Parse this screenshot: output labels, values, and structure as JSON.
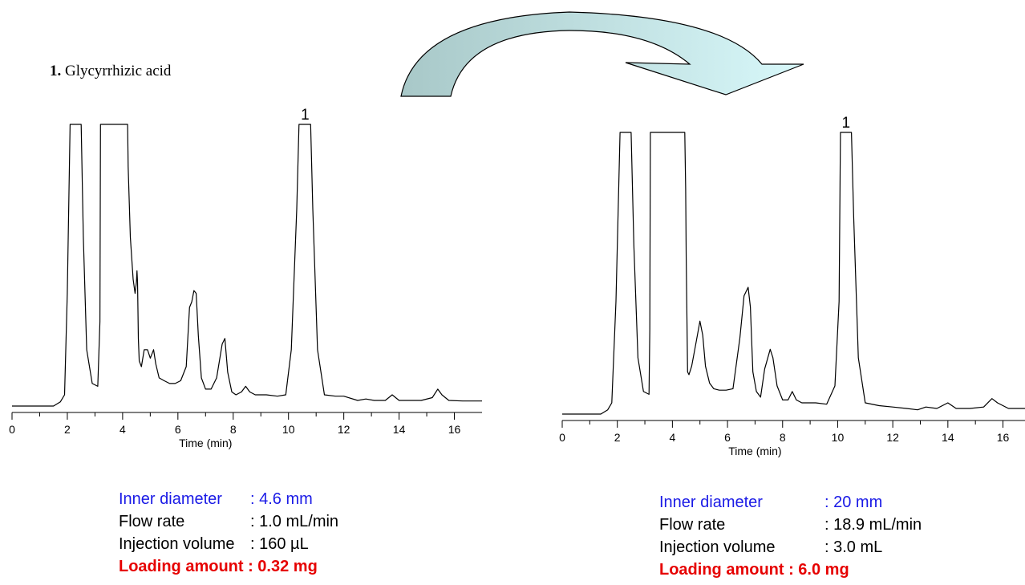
{
  "legend": {
    "num": "1.",
    "name": "Glycyrrhizic acid"
  },
  "colors": {
    "arrow_dark": "#a8c8c8",
    "arrow_light": "#d4f6f8",
    "blue": "#1a1ae6",
    "red": "#e60000"
  },
  "chart_data": [
    {
      "type": "line",
      "xlabel": "Time (min)",
      "ylabel": "",
      "xlim": [
        0,
        17
      ],
      "ylim": [
        0,
        100
      ],
      "xticks": [
        0,
        2,
        4,
        6,
        8,
        10,
        12,
        14,
        16
      ],
      "peak_labels": [
        {
          "x": 10.6,
          "text": "1"
        }
      ],
      "series": [
        {
          "x": [
            0,
            1.5,
            1.75,
            1.9,
            2.0,
            2.1,
            2.5,
            2.58,
            2.7,
            2.9,
            3.1,
            3.18,
            3.2,
            4.18,
            4.2,
            4.28,
            4.38,
            4.45,
            4.5,
            4.52,
            4.54,
            4.57,
            4.6,
            4.68,
            4.78,
            4.9,
            5.0,
            5.12,
            5.2,
            5.32,
            5.5,
            5.7,
            5.9,
            6.1,
            6.3,
            6.42,
            6.5,
            6.58,
            6.66,
            6.74,
            6.85,
            7.0,
            7.2,
            7.4,
            7.6,
            7.7,
            7.8,
            7.95,
            8.1,
            8.3,
            8.45,
            8.6,
            8.8,
            9.2,
            9.6,
            9.9,
            10.1,
            10.3,
            10.38,
            10.8,
            10.88,
            11.05,
            11.3,
            11.7,
            12.0,
            12.5,
            12.8,
            13.1,
            13.5,
            13.75,
            14.0,
            14.3,
            14.8,
            15.2,
            15.4,
            15.55,
            15.8,
            16.3,
            17.0
          ],
          "y": [
            0,
            0,
            1.5,
            4,
            40,
            100,
            100,
            60,
            20,
            8,
            7,
            30,
            100,
            100,
            85,
            60,
            45,
            40,
            44,
            48,
            44,
            24,
            16,
            14,
            20,
            20,
            17,
            20,
            15,
            10,
            9,
            8,
            8,
            9,
            14,
            35,
            37,
            41,
            40,
            25,
            10,
            6,
            6,
            10,
            22,
            24,
            12,
            5,
            4,
            5,
            7,
            5,
            4,
            4,
            3.5,
            4,
            20,
            70,
            100,
            100,
            70,
            20,
            4,
            3.5,
            3.5,
            2,
            2.5,
            2,
            2,
            4,
            2,
            2,
            2,
            3,
            6,
            4,
            2,
            1.8,
            1.8
          ]
        }
      ]
    },
    {
      "type": "line",
      "xlabel": "Time (min)",
      "ylabel": "",
      "xlim": [
        0,
        16.8
      ],
      "ylim": [
        0,
        100
      ],
      "xticks": [
        0,
        2,
        4,
        6,
        8,
        10,
        12,
        14,
        16
      ],
      "peak_labels": [
        {
          "x": 10.3,
          "text": "1"
        }
      ],
      "series": [
        {
          "x": [
            0,
            1.4,
            1.65,
            1.8,
            1.95,
            2.1,
            2.5,
            2.6,
            2.75,
            2.95,
            3.15,
            3.18,
            3.2,
            4.45,
            4.48,
            4.5,
            4.55,
            4.6,
            4.7,
            4.85,
            5.0,
            5.1,
            5.2,
            5.35,
            5.5,
            5.7,
            5.95,
            6.2,
            6.45,
            6.6,
            6.75,
            6.83,
            6.92,
            7.05,
            7.2,
            7.35,
            7.55,
            7.65,
            7.8,
            8.0,
            8.2,
            8.35,
            8.5,
            8.7,
            9.2,
            9.6,
            9.9,
            10.05,
            10.1,
            10.5,
            10.58,
            10.75,
            11.0,
            11.5,
            12.0,
            12.5,
            12.9,
            13.2,
            13.6,
            14.0,
            14.3,
            14.8,
            15.3,
            15.6,
            15.8,
            16.2,
            16.8
          ],
          "y": [
            0,
            0,
            1.5,
            4,
            40,
            100,
            100,
            60,
            20,
            8,
            7,
            30,
            100,
            100,
            80,
            55,
            15,
            14,
            17,
            25,
            33,
            28,
            17,
            11,
            9,
            8.5,
            8.5,
            9,
            27,
            42,
            45,
            38,
            15,
            8,
            6,
            16,
            23,
            20,
            10,
            5,
            5,
            8,
            5,
            4,
            4,
            3.5,
            10,
            40,
            100,
            100,
            70,
            20,
            4,
            3,
            2.5,
            2,
            1.5,
            2.5,
            2,
            4,
            2,
            2,
            2.5,
            5.5,
            4,
            2,
            2
          ]
        }
      ]
    }
  ],
  "params_left": [
    {
      "label": "Inner diameter",
      "value": ": 4.6 mm",
      "style": "blue"
    },
    {
      "label": "Flow rate",
      "value": ": 1.0 mL/min",
      "style": ""
    },
    {
      "label": "Injection volume",
      "value": ": 160 µL",
      "style": ""
    },
    {
      "text": "Loading amount : 0.32 mg",
      "style": "red"
    }
  ],
  "params_right": [
    {
      "label": "Inner diameter",
      "value": ": 20 mm",
      "style": "blue"
    },
    {
      "label": "Flow rate",
      "value": ": 18.9 mL/min",
      "style": ""
    },
    {
      "label": "Injection volume",
      "value": ": 3.0 mL",
      "style": ""
    },
    {
      "text": "Loading amount : 6.0 mg",
      "style": "red"
    }
  ]
}
